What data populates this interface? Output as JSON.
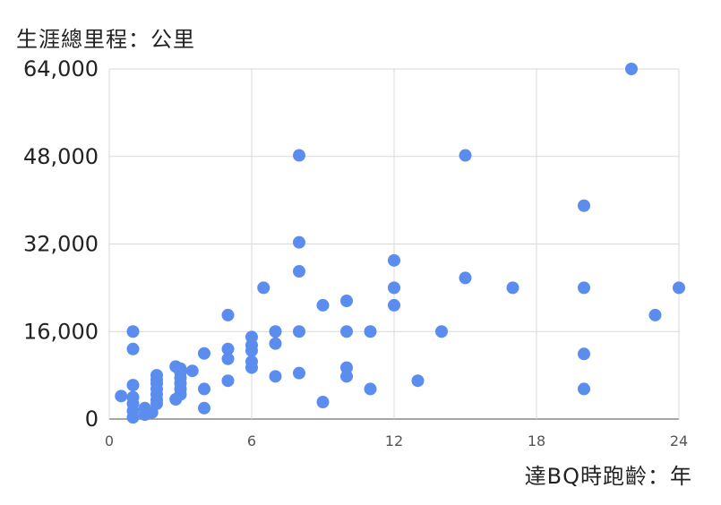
{
  "chart_data": {
    "type": "scatter",
    "ylabel": "生涯總里程：公里",
    "xlabel": "達BQ時跑齡：年",
    "xlim": [
      0,
      24
    ],
    "ylim": [
      0,
      64000
    ],
    "xticks": [
      0,
      6,
      12,
      18,
      24
    ],
    "xtick_labels": [
      "0",
      "6",
      "12",
      "18",
      "24"
    ],
    "yticks": [
      0,
      16000,
      32000,
      48000,
      64000
    ],
    "ytick_labels": [
      "0",
      "16,000",
      "32,000",
      "48,000",
      "64,000"
    ],
    "grid": true,
    "marker_color": "#5b8def",
    "series": [
      {
        "points": [
          [
            0.5,
            4200
          ],
          [
            1,
            300
          ],
          [
            1,
            1500
          ],
          [
            1,
            2800
          ],
          [
            1,
            4000
          ],
          [
            1,
            6200
          ],
          [
            1,
            12800
          ],
          [
            1,
            16000
          ],
          [
            1.5,
            800
          ],
          [
            1.5,
            2000
          ],
          [
            1.8,
            1200
          ],
          [
            2,
            2800
          ],
          [
            2,
            3500
          ],
          [
            2,
            4500
          ],
          [
            2,
            5500
          ],
          [
            2,
            6500
          ],
          [
            2,
            7200
          ],
          [
            2,
            8000
          ],
          [
            2.8,
            3600
          ],
          [
            2.8,
            9600
          ],
          [
            3,
            4500
          ],
          [
            3,
            5500
          ],
          [
            3,
            6500
          ],
          [
            3,
            7500
          ],
          [
            3,
            8500
          ],
          [
            3,
            9200
          ],
          [
            3.5,
            8800
          ],
          [
            4,
            2000
          ],
          [
            4,
            5500
          ],
          [
            4,
            12000
          ],
          [
            5,
            7000
          ],
          [
            5,
            11000
          ],
          [
            5,
            12800
          ],
          [
            5,
            19000
          ],
          [
            6,
            9400
          ],
          [
            6,
            10500
          ],
          [
            6,
            12500
          ],
          [
            6,
            13500
          ],
          [
            6,
            15000
          ],
          [
            6.5,
            24000
          ],
          [
            7,
            7800
          ],
          [
            7,
            13800
          ],
          [
            7,
            16000
          ],
          [
            8,
            8400
          ],
          [
            8,
            16000
          ],
          [
            8,
            27000
          ],
          [
            8,
            32300
          ],
          [
            8,
            48200
          ],
          [
            9,
            3100
          ],
          [
            9,
            20800
          ],
          [
            10,
            7800
          ],
          [
            10,
            9400
          ],
          [
            10,
            16000
          ],
          [
            10,
            21600
          ],
          [
            11,
            5500
          ],
          [
            11,
            16000
          ],
          [
            12,
            20800
          ],
          [
            12,
            24000
          ],
          [
            12,
            29000
          ],
          [
            13,
            7000
          ],
          [
            14,
            16000
          ],
          [
            15,
            25800
          ],
          [
            15,
            48200
          ],
          [
            17,
            24000
          ],
          [
            20,
            5500
          ],
          [
            20,
            11900
          ],
          [
            20,
            24000
          ],
          [
            20,
            39000
          ],
          [
            22,
            64000
          ],
          [
            23,
            19000
          ],
          [
            24,
            24000
          ]
        ]
      }
    ]
  }
}
